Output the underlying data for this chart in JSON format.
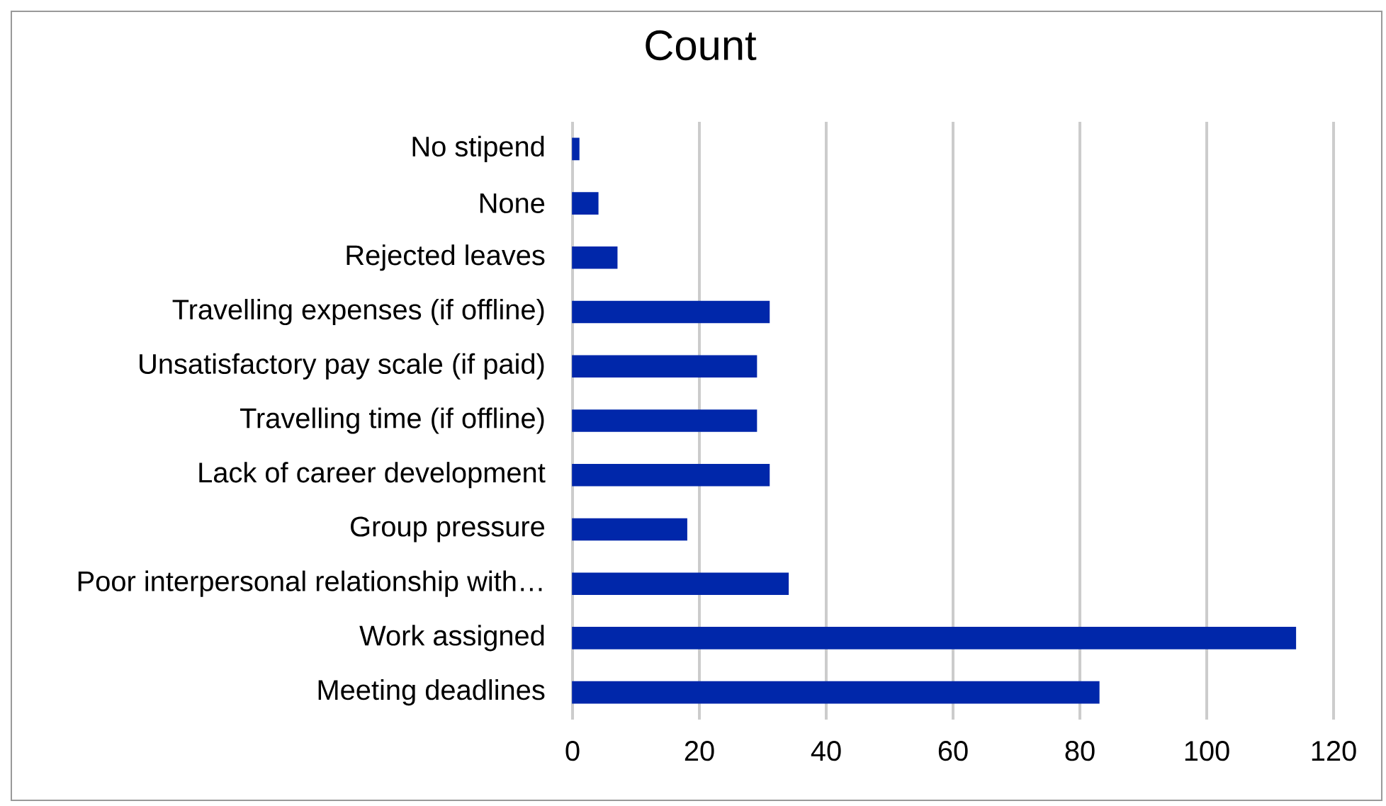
{
  "chart_data": {
    "type": "bar",
    "orientation": "horizontal",
    "title": "Count",
    "categories": [
      "No stipend",
      "None",
      "Rejected leaves",
      "Travelling expenses (if offline)",
      "Unsatisfactory pay scale (if paid)",
      "Travelling time (if offline)",
      "Lack of career development",
      "Group pressure",
      "Poor interpersonal relationship with…",
      "Work assigned",
      "Meeting deadlines"
    ],
    "values": [
      1,
      4,
      7,
      31,
      29,
      29,
      31,
      18,
      34,
      114,
      83
    ],
    "color": "#0027aa",
    "xlim": [
      0,
      120
    ],
    "xticks": [
      0,
      20,
      40,
      60,
      80,
      100,
      120
    ],
    "grid": "x"
  }
}
